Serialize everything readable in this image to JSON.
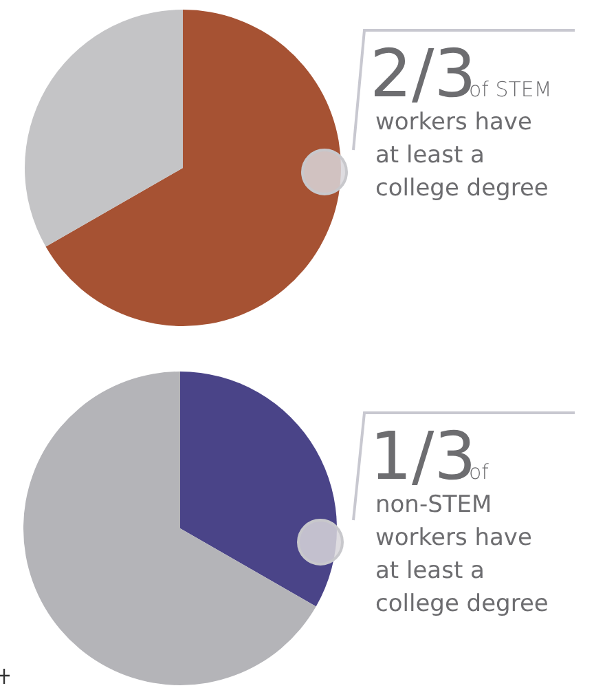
{
  "chart_data": [
    {
      "type": "pie",
      "categories": [
        null,
        null
      ],
      "values": [
        66.7,
        33.3
      ],
      "colors": [
        "#a65233",
        "#c4c4c6"
      ],
      "annotations": [
        "2/3",
        "of STEM",
        "workers have",
        "at least a",
        "college degree"
      ]
    },
    {
      "type": "pie",
      "categories": [
        null,
        null
      ],
      "values": [
        33.3,
        66.7
      ],
      "colors": [
        "#4a4488",
        "#b4b4b8"
      ],
      "annotations": [
        "1/3",
        "of",
        "non-STEM",
        "workers have",
        "at least a",
        "college degree"
      ]
    }
  ]
}
